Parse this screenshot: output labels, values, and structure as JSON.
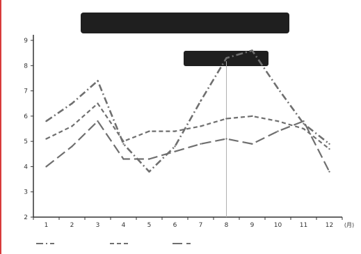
{
  "chart_data": {
    "type": "line",
    "title": "",
    "subtitle": "",
    "note": "",
    "xlabel": "",
    "ylabel": "",
    "unit": "",
    "y_tick_labels": [
      "2",
      "3",
      "4",
      "5",
      "6",
      "7",
      "8",
      "9"
    ],
    "x": [
      "1",
      "2",
      "3",
      "4",
      "5",
      "6",
      "7",
      "8",
      "9",
      "10",
      "11",
      "12"
    ],
    "x_unit": "(月)",
    "ylim": [
      2,
      9
    ],
    "grid": false,
    "legend_position": "bottom",
    "reference_line_x": 8,
    "series": [
      {
        "name": "",
        "style": "dashdot",
        "values": [
          5.8,
          6.5,
          7.4,
          4.9,
          3.8,
          4.8,
          6.6,
          8.3,
          8.6,
          7.1,
          5.7,
          4.9
        ]
      },
      {
        "name": "",
        "style": "dashed",
        "values": [
          5.1,
          5.6,
          6.5,
          5.0,
          5.4,
          5.4,
          5.6,
          5.9,
          6.0,
          5.8,
          5.5,
          4.7
        ]
      },
      {
        "name": "",
        "style": "dashed-long",
        "values": [
          4.0,
          4.8,
          5.8,
          4.3,
          4.3,
          4.6,
          4.9,
          5.1,
          4.9,
          5.4,
          5.8,
          3.8
        ]
      }
    ],
    "colors": {
      "line": "#6f6f6f",
      "title_bg": "#1f1f1f",
      "title_text": "#ffffff",
      "reference": "#b0b0b0"
    }
  }
}
